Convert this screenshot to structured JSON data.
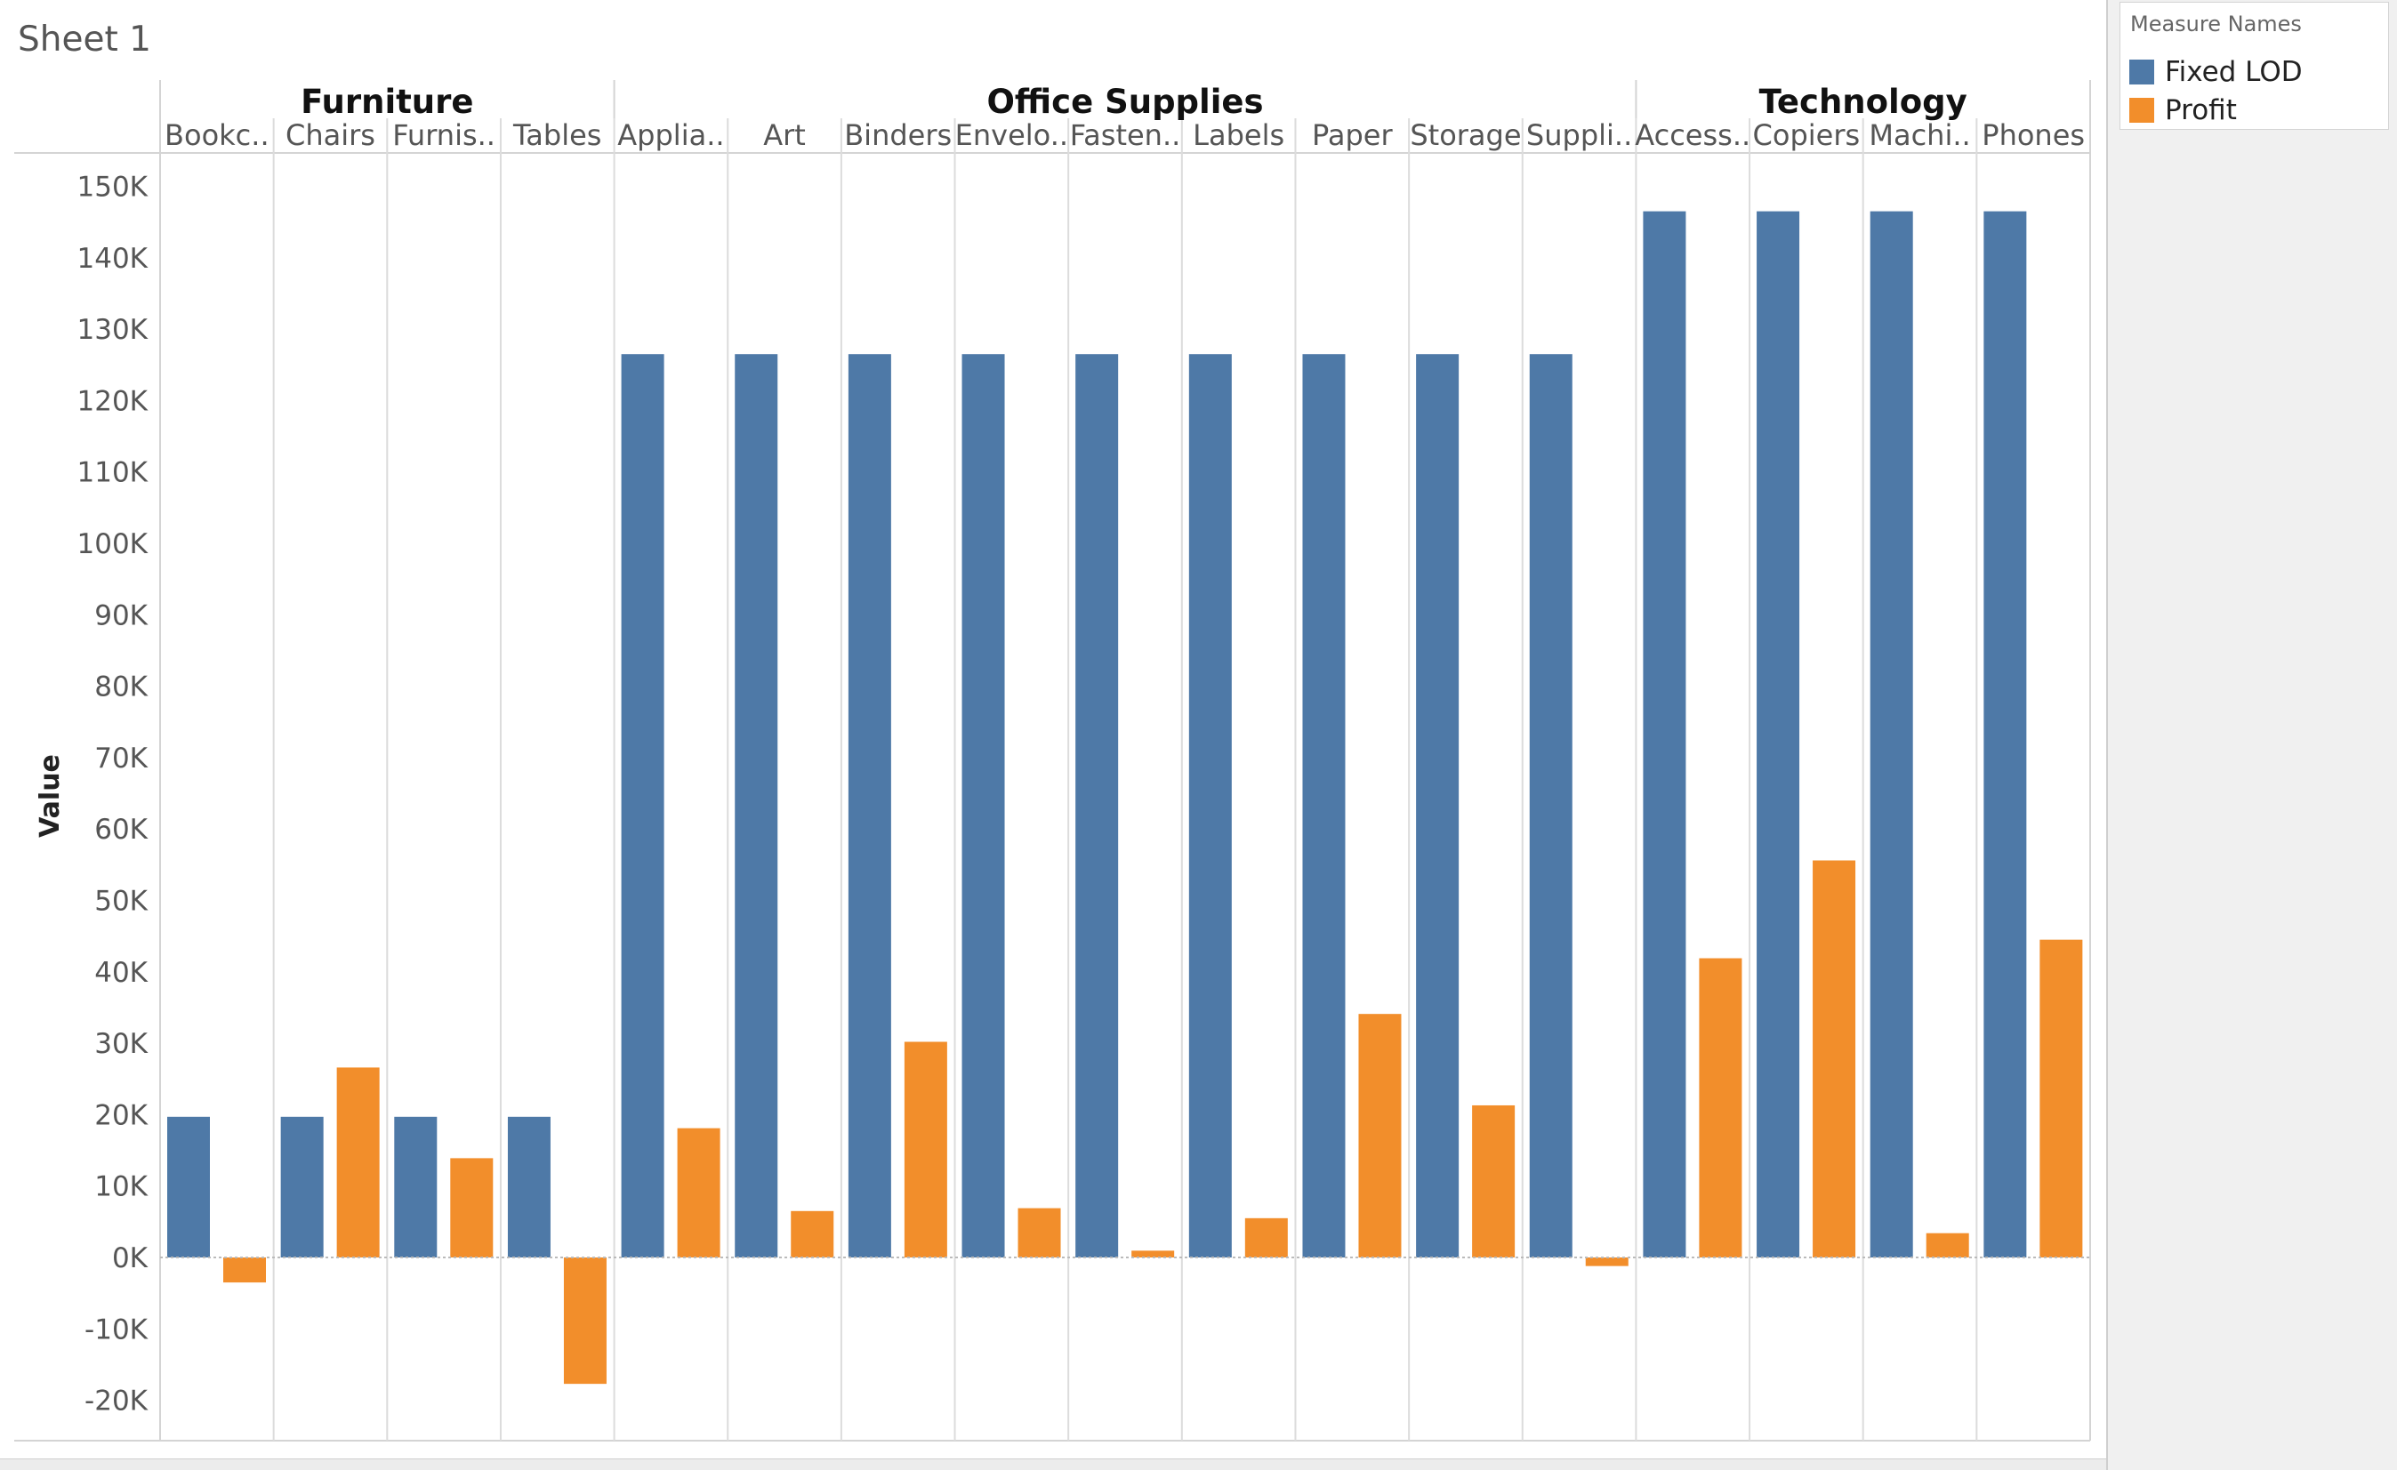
{
  "sheet_title": "Sheet 1",
  "legend": {
    "title": "Measure Names",
    "items": [
      {
        "label": "Fixed LOD",
        "color": "#4e79a7"
      },
      {
        "label": "Profit",
        "color": "#f28e2b"
      }
    ]
  },
  "chart_data": {
    "type": "bar",
    "ylabel": "Value",
    "ylim": [
      -25000,
      155000
    ],
    "yticks": [
      {
        "value": 150000,
        "label": "150K"
      },
      {
        "value": 140000,
        "label": "140K"
      },
      {
        "value": 130000,
        "label": "130K"
      },
      {
        "value": 120000,
        "label": "120K"
      },
      {
        "value": 110000,
        "label": "110K"
      },
      {
        "value": 100000,
        "label": "100K"
      },
      {
        "value": 90000,
        "label": "90K"
      },
      {
        "value": 80000,
        "label": "80K"
      },
      {
        "value": 70000,
        "label": "70K"
      },
      {
        "value": 60000,
        "label": "60K"
      },
      {
        "value": 50000,
        "label": "50K"
      },
      {
        "value": 40000,
        "label": "40K"
      },
      {
        "value": 30000,
        "label": "30K"
      },
      {
        "value": 20000,
        "label": "20K"
      },
      {
        "value": 10000,
        "label": "10K"
      },
      {
        "value": 0,
        "label": "0K"
      },
      {
        "value": -10000,
        "label": "-10K"
      },
      {
        "value": -20000,
        "label": "-20K"
      }
    ],
    "groups": [
      {
        "name": "Furniture",
        "count": 4
      },
      {
        "name": "Office Supplies",
        "count": 9
      },
      {
        "name": "Technology",
        "count": 4
      }
    ],
    "categories": [
      "Bookc..",
      "Chairs",
      "Furnis..",
      "Tables",
      "Applia..",
      "Art",
      "Binders",
      "Envelo..",
      "Fasten..",
      "Labels",
      "Paper",
      "Storage",
      "Suppli..",
      "Access..",
      "Copiers",
      "Machi..",
      "Phones"
    ],
    "series": [
      {
        "name": "Fixed LOD",
        "color": "#4e79a7",
        "values": [
          19700,
          19700,
          19700,
          19700,
          126500,
          126500,
          126500,
          126500,
          126500,
          126500,
          126500,
          126500,
          126500,
          146500,
          146500,
          146500,
          146500
        ]
      },
      {
        "name": "Profit",
        "color": "#f28e2b",
        "values": [
          -3500,
          26600,
          13900,
          -17700,
          18100,
          6500,
          30200,
          6900,
          950,
          5500,
          34100,
          21300,
          -1200,
          41900,
          55600,
          3400,
          44500
        ]
      }
    ],
    "grid": false,
    "legend_position": "top-right"
  }
}
